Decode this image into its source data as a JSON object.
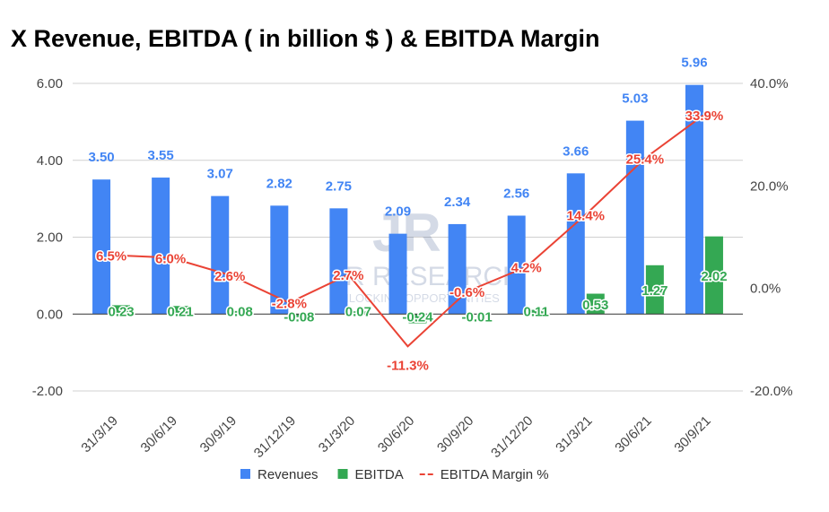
{
  "chart_data": {
    "type": "bar",
    "title": "X Revenue, EBITDA ( in billion $ ) & EBITDA Margin",
    "categories": [
      "31/3/19",
      "30/6/19",
      "30/9/19",
      "31/12/19",
      "31/3/20",
      "30/6/20",
      "30/9/20",
      "31/12/20",
      "31/3/21",
      "30/6/21",
      "30/9/21"
    ],
    "series": [
      {
        "name": "Revenues",
        "type": "bar",
        "axis": "left",
        "color": "#4285F4",
        "values": [
          3.5,
          3.55,
          3.07,
          2.82,
          2.75,
          2.09,
          2.34,
          2.56,
          3.66,
          5.03,
          5.96
        ],
        "labels": [
          "3.50",
          "3.55",
          "3.07",
          "2.82",
          "2.75",
          "2.09",
          "2.34",
          "2.56",
          "3.66",
          "5.03",
          "5.96"
        ]
      },
      {
        "name": "EBITDA",
        "type": "bar",
        "axis": "left",
        "color": "#34A853",
        "values": [
          0.23,
          0.21,
          0.08,
          -0.08,
          0.07,
          -0.24,
          -0.01,
          0.11,
          0.53,
          1.27,
          2.02
        ],
        "labels": [
          "0.23",
          "0.21",
          "0.08",
          "-0.08",
          "0.07",
          "-0.24",
          "-0.01",
          "0.11",
          "0.53",
          "1.27",
          "2.02"
        ]
      },
      {
        "name": "EBITDA Margin %",
        "type": "line",
        "axis": "right",
        "color": "#EA4335",
        "values": [
          6.5,
          6.0,
          2.6,
          -2.8,
          2.7,
          -11.3,
          -0.6,
          4.2,
          14.4,
          25.4,
          33.9
        ],
        "labels": [
          "6.5%",
          "6.0%",
          "2.6%",
          "-2.8%",
          "2.7%",
          "-11.3%",
          "-0.6%",
          "4.2%",
          "14.4%",
          "25.4%",
          "33.9%"
        ]
      }
    ],
    "left_axis": {
      "ylim": [
        -2,
        6
      ],
      "ticks": [
        -2,
        0,
        2,
        4,
        6
      ],
      "tick_labels": [
        "-2.00",
        "0.00",
        "2.00",
        "4.00",
        "6.00"
      ]
    },
    "right_axis": {
      "ylim": [
        -20,
        40
      ],
      "ticks": [
        -20,
        0,
        20,
        40
      ],
      "tick_labels": [
        "-20.0%",
        "0.0%",
        "20.0%",
        "40.0%"
      ]
    },
    "grid": true,
    "legend": "bottom",
    "watermark": "JR RESEARCH UNLOCKING OPPORTUNITIES"
  }
}
